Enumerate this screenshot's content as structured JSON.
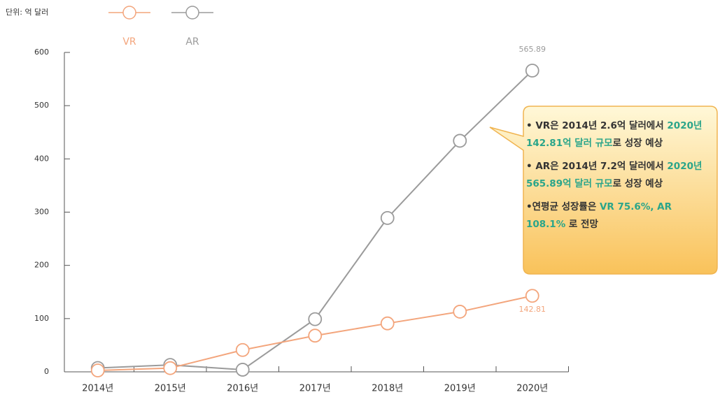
{
  "chart_data": {
    "type": "line",
    "unit": "단위: 억 달러",
    "categories": [
      "2014년",
      "2015년",
      "2016년",
      "2017년",
      "2018년",
      "2019년",
      "2020년"
    ],
    "series": [
      {
        "name": "VR",
        "color": "#f3a57c",
        "values": [
          2.6,
          7,
          41,
          68,
          91,
          113,
          142.81
        ]
      },
      {
        "name": "AR",
        "color": "#9b9b9b",
        "values": [
          7.2,
          13,
          4,
          99,
          289,
          434,
          565.89
        ]
      }
    ],
    "ylim": [
      0,
      600
    ],
    "yticks": [
      0,
      100,
      200,
      300,
      400,
      500,
      600
    ],
    "grid": false,
    "legend": "top",
    "callout": {
      "highlight_color": "#2aa58a",
      "bullets": [
        [
          {
            "text": "• VR은 2014년 2.6억 달러에서 ",
            "highlight": false
          },
          {
            "text": "2020년 142.81억 달러 규모",
            "highlight": true
          },
          {
            "text": "로 성장 예상",
            "highlight": false
          }
        ],
        [
          {
            "text": "• AR은 2014년 7.2억 달러에서 ",
            "highlight": false
          },
          {
            "text": "2020년 565.89억 달러 규모",
            "highlight": true
          },
          {
            "text": "로 성장 예상",
            "highlight": false
          }
        ],
        [
          {
            "text": "•연평균 성장률은 ",
            "highlight": false
          },
          {
            "text": "VR 75.6%, AR 108.1%",
            "highlight": true
          },
          {
            "text": " 로 전망",
            "highlight": false
          }
        ]
      ]
    }
  }
}
